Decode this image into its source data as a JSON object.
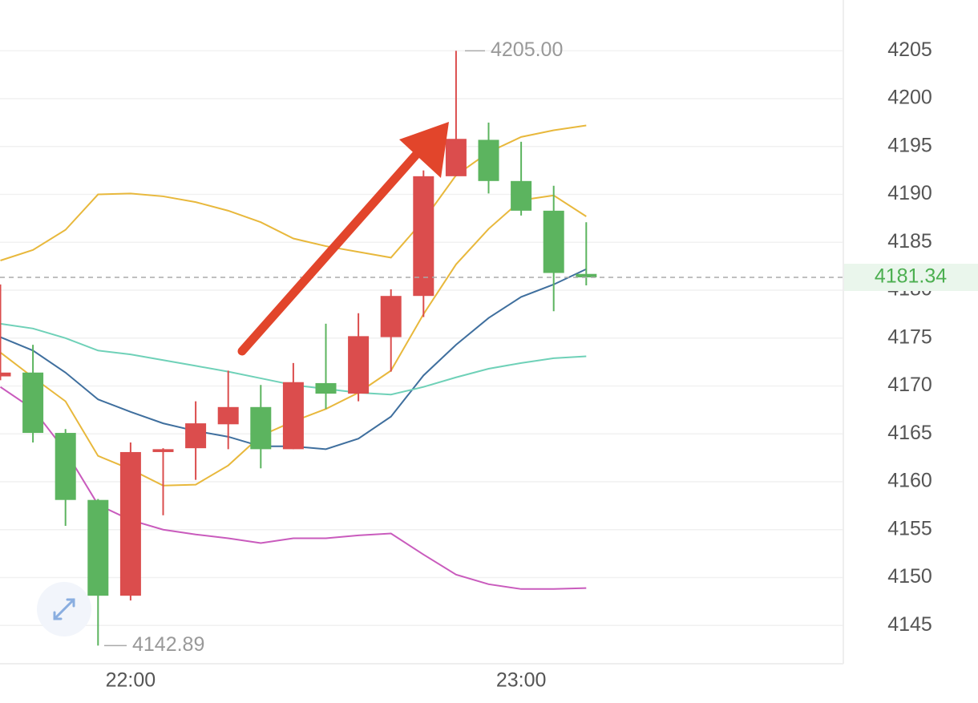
{
  "chart_data": {
    "type": "candlestick",
    "categories": [
      null,
      null,
      null,
      null,
      "22:00",
      null,
      null,
      null,
      null,
      null,
      null,
      null,
      null,
      null,
      null,
      null,
      "23:00",
      null,
      null
    ],
    "open": [
      4171.0,
      4171.4,
      4165.1,
      4158.1,
      4148.1,
      4163.1,
      4163.5,
      4166.0,
      4167.8,
      4163.4,
      4170.3,
      4169.2,
      4175.1,
      4179.4,
      4191.9,
      4195.7,
      4191.4,
      4188.3,
      4181.7
    ],
    "high": [
      4180.6,
      4174.3,
      4165.5,
      4158.2,
      4164.1,
      4163.5,
      4168.4,
      4171.6,
      4170.1,
      4172.4,
      4176.5,
      4177.6,
      4180.1,
      4192.5,
      4205,
      4197.5,
      4195.5,
      4190.9,
      4187.1
    ],
    "low": [
      4170.6,
      4164.1,
      4155.4,
      4142.89,
      4147.6,
      4156.5,
      4160.2,
      4163.4,
      4161.4,
      4163.4,
      4167.6,
      4168.4,
      4171.5,
      4177.2,
      4191.9,
      4190.1,
      4187.8,
      4177.8,
      4180.5
    ],
    "close": [
      4171.4,
      4165.1,
      4158.1,
      4148.1,
      4163.1,
      4163.4,
      4166.1,
      4167.8,
      4163.4,
      4170.4,
      4169.2,
      4175.2,
      4179.4,
      4191.9,
      4195.8,
      4191.4,
      4188.3,
      4181.8,
      4181.34
    ],
    "up_color": "#db4d4d",
    "down_color": "#5cb45f",
    "lines": [
      {
        "color": "#e8b83c",
        "values": [
          4183.1,
          4184.2,
          4186.3,
          4190.0,
          4190.1,
          4189.8,
          4189.2,
          4188.3,
          4187.1,
          4185.4,
          4184.6,
          4184.0,
          4183.4,
          4187.3,
          4192.0,
          4194.4,
          4196.0,
          4196.7,
          4197.2
        ]
      },
      {
        "color": "#e8b83c",
        "values": [
          4173.5,
          4170.9,
          4168.4,
          4162.7,
          4161.3,
          4159.6,
          4159.7,
          4161.7,
          4164.8,
          4166.3,
          4167.6,
          4169.3,
          4171.6,
          4177.5,
          4182.7,
          4186.4,
          4189.4,
          4189.9,
          4187.7
        ]
      },
      {
        "color": "#3f6f9e",
        "values": [
          4175.1,
          4173.7,
          4171.4,
          4168.6,
          4167.3,
          4166.1,
          4165.3,
          4164.7,
          4163.7,
          4163.7,
          4163.4,
          4164.5,
          4166.8,
          4171.1,
          4174.3,
          4177.1,
          4179.3,
          4180.6,
          4182.2
        ]
      },
      {
        "color": "#6fd1b8",
        "values": [
          4176.5,
          4176.0,
          4175.0,
          4173.7,
          4173.3,
          4172.7,
          4172.1,
          4171.5,
          4170.8,
          4170.1,
          4169.7,
          4169.3,
          4169.1,
          4169.9,
          4170.9,
          4171.8,
          4172.4,
          4172.9,
          4173.1
        ]
      },
      {
        "color": "#c95bbd",
        "values": [
          4169.9,
          4167.6,
          4163.2,
          4157.6,
          4156.0,
          4155.0,
          4154.5,
          4154.1,
          4153.6,
          4154.1,
          4154.1,
          4154.4,
          4154.6,
          4152.4,
          4150.3,
          4149.3,
          4148.8,
          4148.8,
          4148.9
        ]
      }
    ],
    "ylim": [
      4141,
      4210.3
    ],
    "yticks": [
      4145,
      4150,
      4155,
      4160,
      4165,
      4170,
      4175,
      4180,
      4185,
      4190,
      4195,
      4200,
      4205
    ],
    "grid": true,
    "current_price": 4181.34,
    "high_annotation": {
      "value": 4205,
      "label": "4205.00"
    },
    "low_annotation": 4142.89
  }
}
